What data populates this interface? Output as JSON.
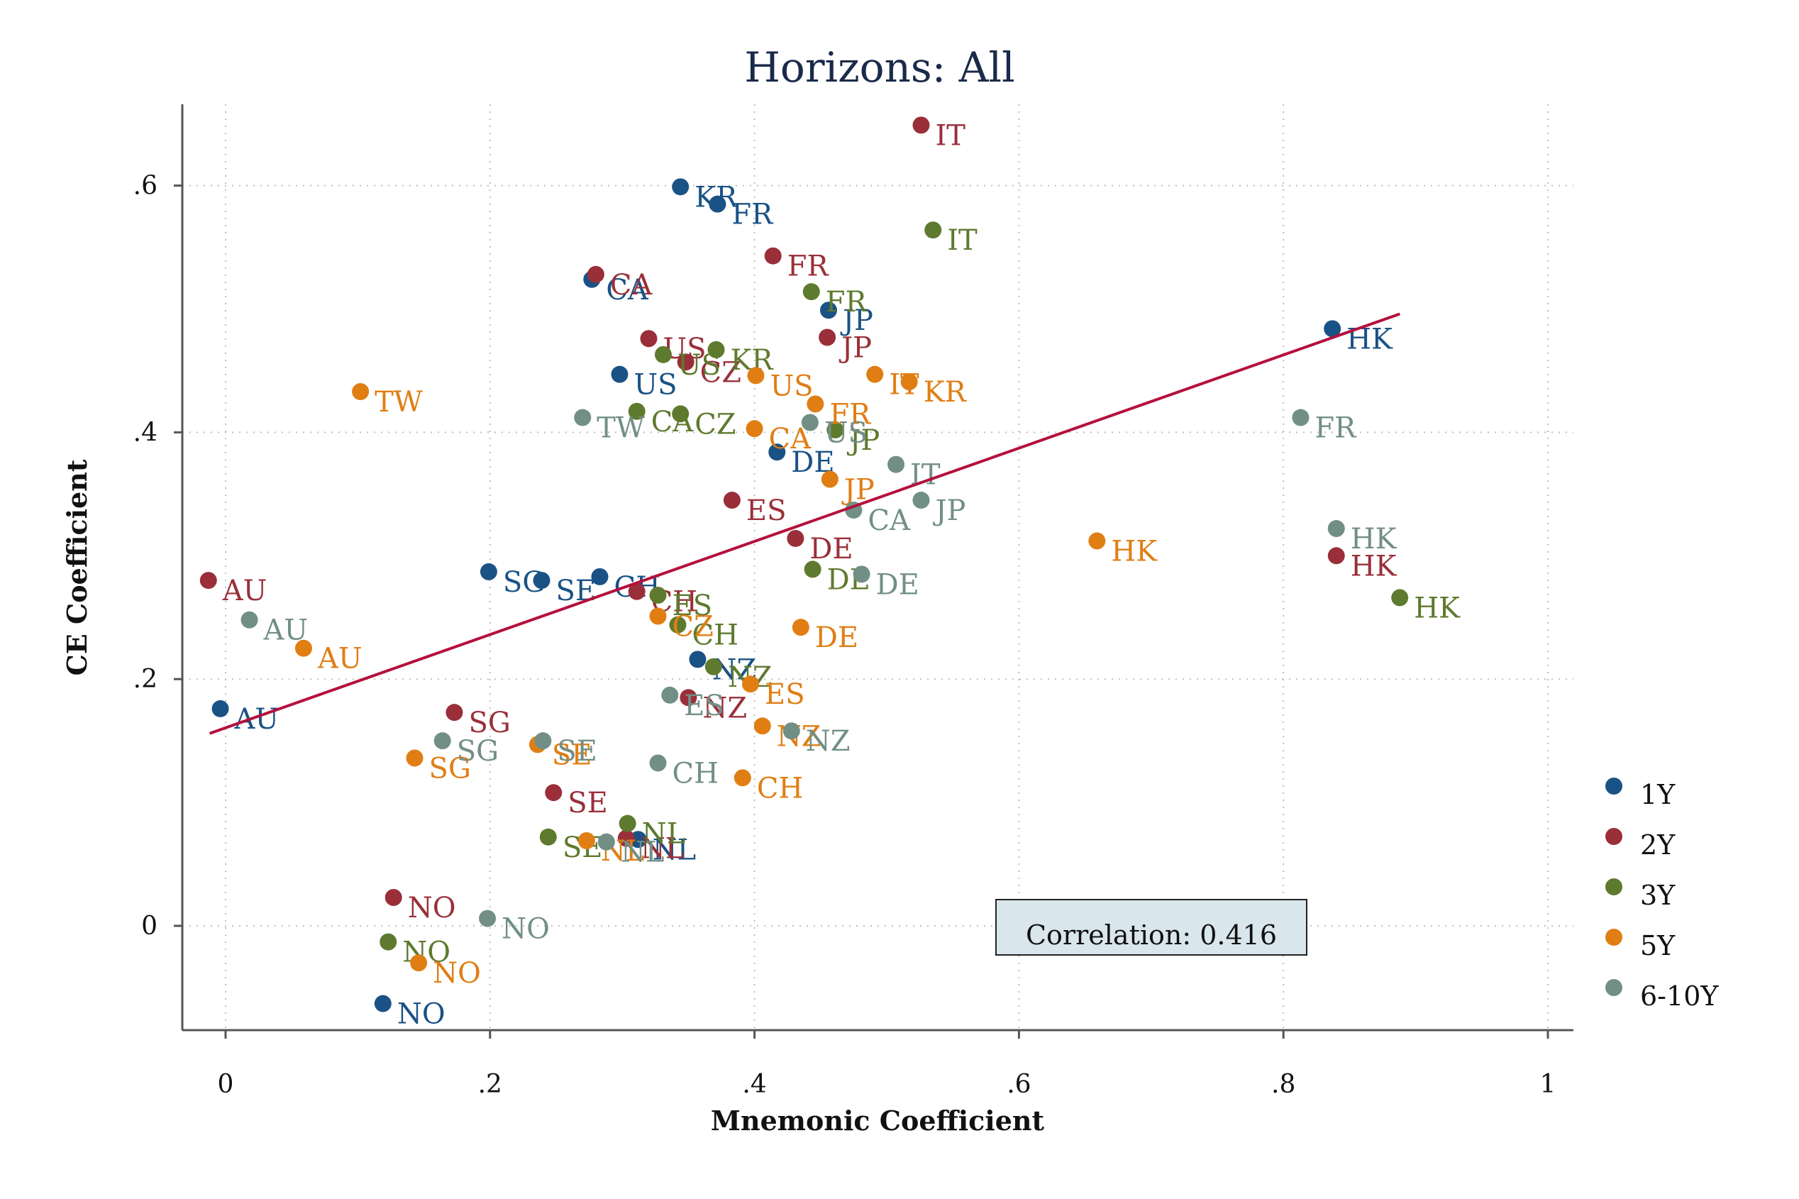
{
  "chart_data": {
    "type": "scatter",
    "title": "Horizons: All",
    "xlabel": "Mnemonic Coefficient",
    "ylabel": "CE Coefficient",
    "xlim": [
      -0.033,
      1.02
    ],
    "ylim": [
      -0.083,
      0.67
    ],
    "xticks": [
      0,
      0.2,
      0.4,
      0.6,
      0.8,
      1
    ],
    "xtick_labels": [
      "0",
      ".2",
      ".4",
      ".6",
      ".8",
      "1"
    ],
    "yticks": [
      0,
      0.2,
      0.4,
      0.6
    ],
    "ytick_labels": [
      "0",
      ".2",
      ".4",
      ".6"
    ],
    "grid": true,
    "legend_position": "right",
    "annotation": "Correlation: 0.416",
    "fit_line": {
      "x": [
        -0.012,
        0.888
      ],
      "y": [
        0.156,
        0.496
      ],
      "color": "#b5103c"
    },
    "series": [
      {
        "name": "1Y",
        "color": "#1a5285",
        "points": [
          {
            "x": 0.344,
            "y": 0.599,
            "label": "KR"
          },
          {
            "x": 0.372,
            "y": 0.585,
            "label": "FR"
          },
          {
            "x": 0.277,
            "y": 0.524,
            "label": "CA"
          },
          {
            "x": 0.456,
            "y": 0.499,
            "label": "JP"
          },
          {
            "x": 0.837,
            "y": 0.484,
            "label": "HK"
          },
          {
            "x": 0.298,
            "y": 0.447,
            "label": "US"
          },
          {
            "x": 0.417,
            "y": 0.384,
            "label": "DE"
          },
          {
            "x": 0.199,
            "y": 0.287,
            "label": "SG"
          },
          {
            "x": 0.239,
            "y": 0.28,
            "label": "SE"
          },
          {
            "x": 0.283,
            "y": 0.283,
            "label": "CH"
          },
          {
            "x": 0.357,
            "y": 0.216,
            "label": "NZ"
          },
          {
            "x": -0.004,
            "y": 0.176,
            "label": "AU"
          },
          {
            "x": 0.119,
            "y": -0.063,
            "label": "NO"
          },
          {
            "x": 0.312,
            "y": 0.07,
            "label": "NL"
          }
        ]
      },
      {
        "name": "2Y",
        "color": "#9a2f39",
        "points": [
          {
            "x": 0.526,
            "y": 0.649,
            "label": "IT"
          },
          {
            "x": 0.414,
            "y": 0.543,
            "label": "FR"
          },
          {
            "x": 0.28,
            "y": 0.528,
            "label": "CA"
          },
          {
            "x": 0.455,
            "y": 0.477,
            "label": "JP"
          },
          {
            "x": 0.32,
            "y": 0.476,
            "label": "US"
          },
          {
            "x": 0.348,
            "y": 0.457,
            "label": "CZ"
          },
          {
            "x": 0.383,
            "y": 0.345,
            "label": "ES"
          },
          {
            "x": 0.431,
            "y": 0.314,
            "label": "DE"
          },
          {
            "x": 0.84,
            "y": 0.3,
            "label": "HK"
          },
          {
            "x": -0.013,
            "y": 0.28,
            "label": "AU"
          },
          {
            "x": 0.311,
            "y": 0.271,
            "label": "CH"
          },
          {
            "x": 0.35,
            "y": 0.185,
            "label": "NZ"
          },
          {
            "x": 0.173,
            "y": 0.173,
            "label": "SG"
          },
          {
            "x": 0.248,
            "y": 0.108,
            "label": "SE"
          },
          {
            "x": 0.127,
            "y": 0.023,
            "label": "NO"
          },
          {
            "x": 0.303,
            "y": 0.071,
            "label": "NL"
          }
        ]
      },
      {
        "name": "3Y",
        "color": "#5e7a2e",
        "points": [
          {
            "x": 0.535,
            "y": 0.564,
            "label": "IT"
          },
          {
            "x": 0.443,
            "y": 0.514,
            "label": "FR"
          },
          {
            "x": 0.371,
            "y": 0.467,
            "label": "KR"
          },
          {
            "x": 0.331,
            "y": 0.463,
            "label": "US"
          },
          {
            "x": 0.311,
            "y": 0.417,
            "label": "CA"
          },
          {
            "x": 0.344,
            "y": 0.415,
            "label": "CZ"
          },
          {
            "x": 0.461,
            "y": 0.402,
            "label": "JP"
          },
          {
            "x": 0.444,
            "y": 0.289,
            "label": "DE"
          },
          {
            "x": 0.888,
            "y": 0.266,
            "label": "HK"
          },
          {
            "x": 0.327,
            "y": 0.268,
            "label": "ES"
          },
          {
            "x": 0.342,
            "y": 0.244,
            "label": "CH"
          },
          {
            "x": 0.369,
            "y": 0.21,
            "label": "NZ"
          },
          {
            "x": 0.244,
            "y": 0.072,
            "label": "SE"
          },
          {
            "x": 0.304,
            "y": 0.083,
            "label": "NL"
          },
          {
            "x": 0.123,
            "y": -0.013,
            "label": "NO"
          }
        ]
      },
      {
        "name": "5Y",
        "color": "#e07e14",
        "points": [
          {
            "x": 0.102,
            "y": 0.433,
            "label": "TW"
          },
          {
            "x": 0.491,
            "y": 0.447,
            "label": "IT"
          },
          {
            "x": 0.517,
            "y": 0.441,
            "label": "KR"
          },
          {
            "x": 0.401,
            "y": 0.446,
            "label": "US"
          },
          {
            "x": 0.446,
            "y": 0.423,
            "label": "FR"
          },
          {
            "x": 0.4,
            "y": 0.403,
            "label": "CA"
          },
          {
            "x": 0.457,
            "y": 0.362,
            "label": "JP"
          },
          {
            "x": 0.659,
            "y": 0.312,
            "label": "HK"
          },
          {
            "x": 0.327,
            "y": 0.251,
            "label": "CZ"
          },
          {
            "x": 0.435,
            "y": 0.242,
            "label": "DE"
          },
          {
            "x": 0.059,
            "y": 0.225,
            "label": "AU"
          },
          {
            "x": 0.397,
            "y": 0.196,
            "label": "ES"
          },
          {
            "x": 0.406,
            "y": 0.162,
            "label": "NZ"
          },
          {
            "x": 0.236,
            "y": 0.147,
            "label": "SE"
          },
          {
            "x": 0.143,
            "y": 0.136,
            "label": "SG"
          },
          {
            "x": 0.391,
            "y": 0.12,
            "label": "CH"
          },
          {
            "x": 0.273,
            "y": 0.069,
            "label": "NL"
          },
          {
            "x": 0.146,
            "y": -0.03,
            "label": "NO"
          }
        ]
      },
      {
        "name": "6-10Y",
        "color": "#728f85",
        "points": [
          {
            "x": 0.813,
            "y": 0.412,
            "label": "FR"
          },
          {
            "x": 0.27,
            "y": 0.412,
            "label": "TW"
          },
          {
            "x": 0.442,
            "y": 0.408,
            "label": "US"
          },
          {
            "x": 0.507,
            "y": 0.374,
            "label": "IT"
          },
          {
            "x": 0.526,
            "y": 0.345,
            "label": "JP"
          },
          {
            "x": 0.475,
            "y": 0.337,
            "label": "CA"
          },
          {
            "x": 0.84,
            "y": 0.322,
            "label": "HK"
          },
          {
            "x": 0.481,
            "y": 0.285,
            "label": "DE"
          },
          {
            "x": 0.018,
            "y": 0.248,
            "label": "AU"
          },
          {
            "x": 0.336,
            "y": 0.187,
            "label": "ES"
          },
          {
            "x": 0.428,
            "y": 0.158,
            "label": "NZ"
          },
          {
            "x": 0.164,
            "y": 0.15,
            "label": "SG"
          },
          {
            "x": 0.24,
            "y": 0.15,
            "label": "SE"
          },
          {
            "x": 0.327,
            "y": 0.132,
            "label": "CH"
          },
          {
            "x": 0.288,
            "y": 0.068,
            "label": "NL"
          },
          {
            "x": 0.198,
            "y": 0.006,
            "label": "NO"
          }
        ]
      }
    ]
  }
}
